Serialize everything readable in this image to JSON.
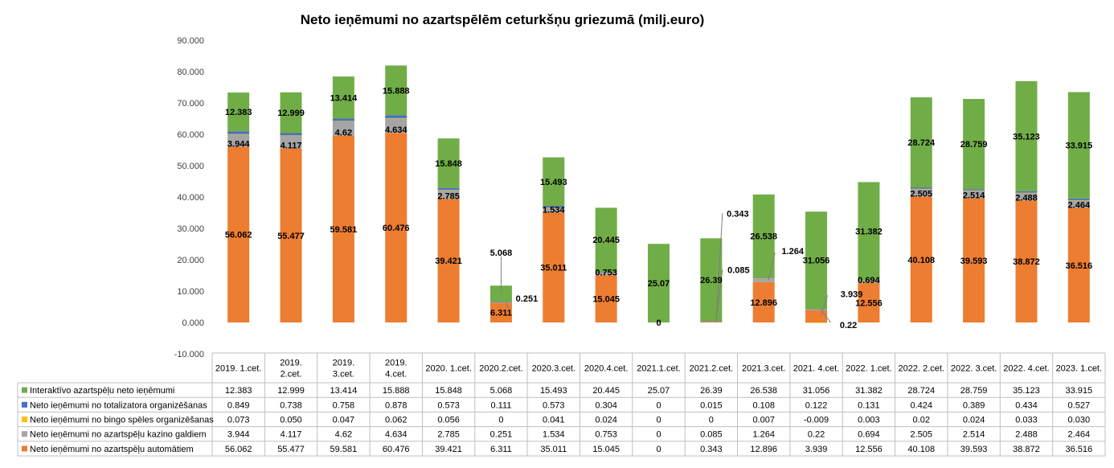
{
  "chart_data": {
    "type": "bar",
    "stacked": true,
    "title": "Neto ieņēmumi no azartspēlēm ceturkšņu griezumā (milj.euro)",
    "ylim": [
      -10,
      90
    ],
    "yticks": [
      "-10.000",
      "0.000",
      "10.000",
      "20.000",
      "30.000",
      "40.000",
      "50.000",
      "60.000",
      "70.000",
      "80.000",
      "90.000"
    ],
    "ytick_values": [
      -10,
      0,
      10,
      20,
      30,
      40,
      50,
      60,
      70,
      80,
      90
    ],
    "grid": false,
    "legend": "table-bottom",
    "categories": [
      [
        "2019. 1.cet."
      ],
      [
        "2019.",
        "2.cet."
      ],
      [
        "2019.",
        "3.cet."
      ],
      [
        "2019.",
        "4.cet."
      ],
      [
        "2020. 1.cet."
      ],
      [
        "2020.2.cet."
      ],
      [
        "2020.3.cet."
      ],
      [
        "2020.4.cet."
      ],
      [
        "2021.1.cet."
      ],
      [
        "2021.2.cet."
      ],
      [
        "2021.3.cet."
      ],
      [
        "2021. 4.cet."
      ],
      [
        "2022. 1.cet."
      ],
      [
        "2022. 2.cet."
      ],
      [
        "2022. 3.cet."
      ],
      [
        "2022. 4.cet."
      ],
      [
        "2023. 1.cet."
      ]
    ],
    "series": [
      {
        "name": "Neto ieņēmumi no azartspēļu automātiem",
        "color": "#ED7D31",
        "values": [
          56.062,
          55.477,
          59.581,
          60.476,
          39.421,
          6.311,
          35.011,
          15.045,
          0,
          0.343,
          12.896,
          3.939,
          12.556,
          40.108,
          39.593,
          38.872,
          36.516
        ],
        "table_values": [
          "56.062",
          "55.477",
          "59.581",
          "60.476",
          "39.421",
          "6.311",
          "35.011",
          "15.045",
          "0",
          "0.343",
          "12.896",
          "3.939",
          "12.556",
          "40.108",
          "39.593",
          "38.872",
          "36.516"
        ]
      },
      {
        "name": "Neto ieņēmumi no azartspēļu kazino galdiem",
        "color": "#A5A5A5",
        "values": [
          3.944,
          4.117,
          4.62,
          4.634,
          2.785,
          0.251,
          1.534,
          0.753,
          0,
          0.085,
          1.264,
          0.22,
          0.694,
          2.505,
          2.514,
          2.488,
          2.464
        ],
        "table_values": [
          "3.944",
          "4.117",
          "4.62",
          "4.634",
          "2.785",
          "0.251",
          "1.534",
          "0.753",
          "0",
          "0.085",
          "1.264",
          "0.22",
          "0.694",
          "2.505",
          "2.514",
          "2.488",
          "2.464"
        ]
      },
      {
        "name": "Neto ieņēmumi no bingo spēles organizēšanas",
        "color": "#FFC000",
        "values": [
          0.073,
          0.05,
          0.047,
          0.062,
          0.056,
          0,
          0.041,
          0.024,
          0,
          0,
          0.007,
          -0.009,
          0.003,
          0.02,
          0.024,
          0.033,
          0.03
        ],
        "table_values": [
          "0.073",
          "0.050",
          "0.047",
          "0.062",
          "0.056",
          "0",
          "0.041",
          "0.024",
          "0",
          "0",
          "0.007",
          "-0.009",
          "0.003",
          "0.02",
          "0.024",
          "0.033",
          "0.030"
        ]
      },
      {
        "name": "Neto ieņēmumi no totalizatora organizēšanas",
        "color": "#4472C4",
        "values": [
          0.849,
          0.738,
          0.758,
          0.878,
          0.573,
          0.111,
          0.573,
          0.304,
          0,
          0.015,
          0.108,
          0.122,
          0.131,
          0.424,
          0.389,
          0.434,
          0.527
        ],
        "table_values": [
          "0.849",
          "0.738",
          "0.758",
          "0.878",
          "0.573",
          "0.111",
          "0.573",
          "0.304",
          "0",
          "0.015",
          "0.108",
          "0.122",
          "0.131",
          "0.424",
          "0.389",
          "0.434",
          "0.527"
        ]
      },
      {
        "name": "Interaktīvo azartspēļu neto ieņēmumi",
        "color": "#70AD47",
        "values": [
          12.383,
          12.999,
          13.414,
          15.888,
          15.848,
          5.068,
          15.493,
          20.445,
          25.07,
          26.39,
          26.538,
          31.056,
          31.382,
          28.724,
          28.759,
          35.123,
          33.915
        ],
        "table_values": [
          "12.383",
          "12.999",
          "13.414",
          "15.888",
          "15.848",
          "5.068",
          "15.493",
          "20.445",
          "25.07",
          "26.39",
          "26.538",
          "31.056",
          "31.382",
          "28.724",
          "28.759",
          "35.123",
          "33.915"
        ]
      }
    ],
    "table_row_order": [
      4,
      3,
      2,
      1,
      0
    ],
    "data_labels": [
      {
        "series": 0,
        "cat": 0,
        "text": "56.062"
      },
      {
        "series": 0,
        "cat": 1,
        "text": "55.477"
      },
      {
        "series": 0,
        "cat": 2,
        "text": "59.581"
      },
      {
        "series": 0,
        "cat": 3,
        "text": "60.476"
      },
      {
        "series": 0,
        "cat": 4,
        "text": "39.421"
      },
      {
        "series": 0,
        "cat": 5,
        "text": "6.311"
      },
      {
        "series": 0,
        "cat": 6,
        "text": "35.011"
      },
      {
        "series": 0,
        "cat": 7,
        "text": "15.045"
      },
      {
        "series": 0,
        "cat": 8,
        "text": "0"
      },
      {
        "series": 0,
        "cat": 9,
        "text": "0.343",
        "callout": true
      },
      {
        "series": 0,
        "cat": 10,
        "text": "12.896"
      },
      {
        "series": 0,
        "cat": 11,
        "text": "3.939",
        "callout": true
      },
      {
        "series": 0,
        "cat": 12,
        "text": "12.556"
      },
      {
        "series": 0,
        "cat": 13,
        "text": "40.108"
      },
      {
        "series": 0,
        "cat": 14,
        "text": "39.593"
      },
      {
        "series": 0,
        "cat": 15,
        "text": "38.872"
      },
      {
        "series": 0,
        "cat": 16,
        "text": "36.516"
      },
      {
        "series": 1,
        "cat": 0,
        "text": "3.944"
      },
      {
        "series": 1,
        "cat": 1,
        "text": "4.117"
      },
      {
        "series": 1,
        "cat": 2,
        "text": "4.62"
      },
      {
        "series": 1,
        "cat": 3,
        "text": "4.634"
      },
      {
        "series": 1,
        "cat": 4,
        "text": "2.785"
      },
      {
        "series": 1,
        "cat": 5,
        "text": "0.251",
        "callout": true
      },
      {
        "series": 1,
        "cat": 6,
        "text": "1.534"
      },
      {
        "series": 1,
        "cat": 7,
        "text": "0.753"
      },
      {
        "series": 1,
        "cat": 9,
        "text": "0.085",
        "callout": true
      },
      {
        "series": 1,
        "cat": 10,
        "text": "1.264",
        "callout": true
      },
      {
        "series": 1,
        "cat": 11,
        "text": "0.22",
        "callout": true
      },
      {
        "series": 1,
        "cat": 12,
        "text": "0.694"
      },
      {
        "series": 1,
        "cat": 13,
        "text": "2.505"
      },
      {
        "series": 1,
        "cat": 14,
        "text": "2.514"
      },
      {
        "series": 1,
        "cat": 15,
        "text": "2.488"
      },
      {
        "series": 1,
        "cat": 16,
        "text": "2.464"
      },
      {
        "series": 4,
        "cat": 0,
        "text": "12.383"
      },
      {
        "series": 4,
        "cat": 1,
        "text": "12.999"
      },
      {
        "series": 4,
        "cat": 2,
        "text": "13.414"
      },
      {
        "series": 4,
        "cat": 3,
        "text": "15.888"
      },
      {
        "series": 4,
        "cat": 4,
        "text": "15.848"
      },
      {
        "series": 4,
        "cat": 5,
        "text": "5.068",
        "callout": true
      },
      {
        "series": 4,
        "cat": 6,
        "text": "15.493"
      },
      {
        "series": 4,
        "cat": 7,
        "text": "20.445"
      },
      {
        "series": 4,
        "cat": 8,
        "text": "25.07"
      },
      {
        "series": 4,
        "cat": 9,
        "text": "26.39"
      },
      {
        "series": 4,
        "cat": 10,
        "text": "26.538"
      },
      {
        "series": 4,
        "cat": 11,
        "text": "31.056"
      },
      {
        "series": 4,
        "cat": 12,
        "text": "31.382"
      },
      {
        "series": 4,
        "cat": 13,
        "text": "28.724"
      },
      {
        "series": 4,
        "cat": 14,
        "text": "28.759"
      },
      {
        "series": 4,
        "cat": 15,
        "text": "35.123"
      },
      {
        "series": 4,
        "cat": 16,
        "text": "33.915"
      }
    ]
  }
}
